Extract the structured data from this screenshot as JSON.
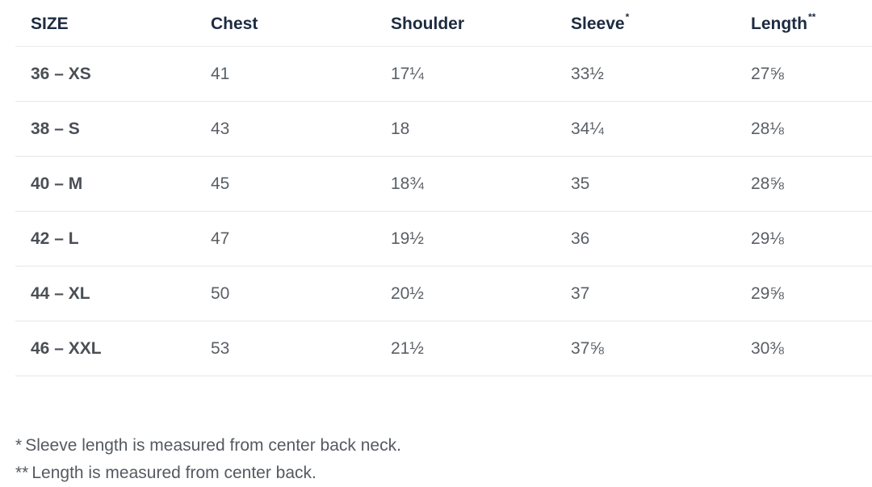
{
  "table": {
    "headers": {
      "size": "SIZE",
      "chest": "Chest",
      "shoulder": "Shoulder",
      "sleeve": "Sleeve",
      "sleeve_mark": "*",
      "length": "Length",
      "length_mark": "**"
    },
    "rows": [
      {
        "size": "36 – XS",
        "chest": "41",
        "shoulder": "17¼",
        "sleeve": "33½",
        "length": "27⅝"
      },
      {
        "size": "38 – S",
        "chest": "43",
        "shoulder": "18",
        "sleeve": "34¼",
        "length": "28⅛"
      },
      {
        "size": "40 – M",
        "chest": "45",
        "shoulder": "18¾",
        "sleeve": "35",
        "length": "28⅝"
      },
      {
        "size": "42 – L",
        "chest": "47",
        "shoulder": "19½",
        "sleeve": "36",
        "length": "29⅛"
      },
      {
        "size": "44 – XL",
        "chest": "50",
        "shoulder": "20½",
        "sleeve": "37",
        "length": "29⅝"
      },
      {
        "size": "46 – XXL",
        "chest": "53",
        "shoulder": "21½",
        "sleeve": "37⅝",
        "length": "30⅜"
      }
    ]
  },
  "notes": [
    {
      "mark": "*",
      "text": "Sleeve length is measured from center back neck."
    },
    {
      "mark": "**",
      "text": "Length is measured from center back."
    }
  ]
}
